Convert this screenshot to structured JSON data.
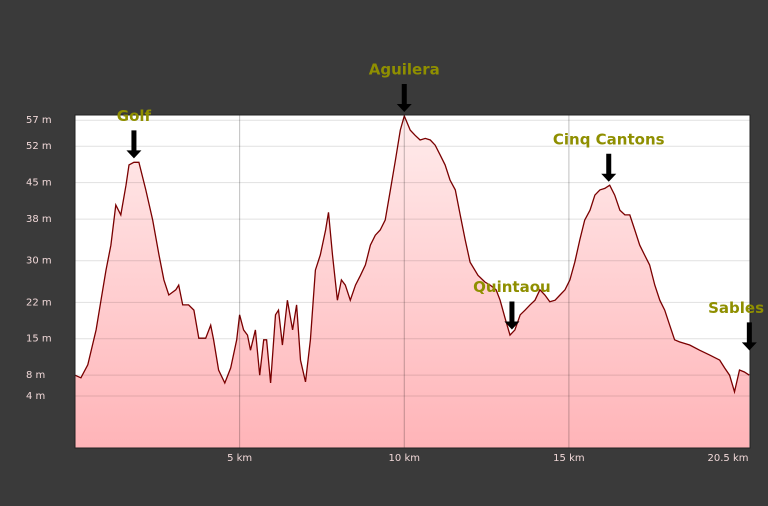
{
  "chart_data": {
    "type": "area",
    "color": "#7a0000",
    "fill_top": "#ffecec",
    "fill_bottom": "#ffb4b8",
    "grid": true,
    "x": [
      0,
      0.18,
      0.39,
      0.64,
      0.79,
      0.94,
      1.09,
      1.24,
      1.39,
      1.55,
      1.64,
      1.79,
      1.94,
      2.15,
      2.36,
      2.55,
      2.7,
      2.85,
      3.06,
      3.15,
      3.27,
      3.45,
      3.61,
      3.76,
      3.97,
      4.12,
      4.21,
      4.36,
      4.55,
      4.73,
      4.91,
      5.0,
      5.12,
      5.24,
      5.33,
      5.48,
      5.61,
      5.73,
      5.82,
      5.94,
      6.09,
      6.18,
      6.3,
      6.45,
      6.61,
      6.73,
      6.85,
      7.0,
      7.15,
      7.3,
      7.45,
      7.61,
      7.7,
      7.82,
      7.97,
      8.09,
      8.21,
      8.36,
      8.52,
      8.67,
      8.82,
      8.97,
      9.12,
      9.27,
      9.42,
      9.58,
      9.73,
      9.88,
      10.0,
      10.18,
      10.33,
      10.48,
      10.64,
      10.79,
      10.94,
      11.09,
      11.24,
      11.39,
      11.55,
      11.7,
      11.85,
      12.0,
      12.24,
      12.45,
      12.61,
      12.79,
      12.91,
      13.06,
      13.21,
      13.36,
      13.52,
      13.67,
      13.82,
      13.97,
      14.12,
      14.27,
      14.42,
      14.58,
      14.73,
      14.88,
      15.03,
      15.18,
      15.33,
      15.48,
      15.64,
      15.79,
      15.94,
      16.09,
      16.24,
      16.39,
      16.55,
      16.7,
      16.85,
      17.0,
      17.15,
      17.3,
      17.45,
      17.61,
      17.76,
      17.91,
      18.06,
      18.21,
      18.36,
      18.67,
      18.97,
      19.27,
      19.58,
      19.73,
      19.88,
      20.03,
      20.18,
      20.33,
      20.48
    ],
    "values": [
      8.0,
      7.5,
      10.0,
      16.7,
      22.4,
      28.2,
      33.0,
      40.7,
      38.8,
      44.5,
      48.4,
      48.9,
      48.9,
      43.6,
      37.8,
      31.1,
      26.3,
      23.4,
      24.4,
      25.3,
      21.5,
      21.5,
      20.5,
      15.1,
      15.1,
      17.6,
      14.8,
      9.0,
      6.5,
      9.4,
      14.8,
      19.6,
      16.7,
      15.7,
      12.8,
      16.7,
      8.0,
      14.8,
      14.8,
      6.5,
      19.6,
      20.5,
      13.8,
      22.4,
      16.7,
      21.5,
      10.9,
      6.7,
      14.8,
      28.2,
      31.1,
      35.9,
      39.3,
      31.1,
      22.4,
      26.3,
      25.3,
      22.4,
      25.3,
      27.2,
      29.2,
      33.0,
      34.9,
      35.9,
      37.8,
      43.6,
      49.3,
      55.1,
      57.8,
      55.1,
      54.1,
      53.2,
      53.5,
      53.2,
      52.2,
      50.3,
      48.4,
      45.5,
      43.6,
      38.8,
      34.0,
      29.7,
      27.2,
      25.9,
      25.3,
      24.4,
      22.4,
      19.0,
      15.7,
      16.7,
      19.6,
      20.5,
      21.5,
      22.4,
      24.4,
      23.4,
      22.1,
      22.4,
      23.4,
      24.4,
      26.3,
      29.7,
      34.0,
      37.8,
      39.7,
      42.6,
      43.6,
      43.9,
      44.5,
      42.6,
      39.7,
      38.8,
      38.8,
      35.9,
      33.0,
      31.1,
      29.2,
      25.3,
      22.4,
      20.5,
      17.6,
      14.8,
      14.4,
      13.8,
      12.8,
      11.9,
      10.9,
      9.4,
      8.0,
      4.8,
      9.0,
      8.6,
      8.0
    ],
    "xlim": [
      0,
      20.5
    ],
    "ylim": [
      -6,
      58
    ],
    "xticks": [
      {
        "value": 5,
        "label": "5 km"
      },
      {
        "value": 10,
        "label": "10 km"
      },
      {
        "value": 15,
        "label": "15 km"
      },
      {
        "value": 20.5,
        "label": "20.5 km"
      }
    ],
    "yticks": [
      {
        "value": 57,
        "label": "57 m"
      },
      {
        "value": 52,
        "label": "52 m"
      },
      {
        "value": 45,
        "label": "45 m"
      },
      {
        "value": 38,
        "label": "38 m"
      },
      {
        "value": 30,
        "label": "30 m"
      },
      {
        "value": 22,
        "label": "22 m"
      },
      {
        "value": 15,
        "label": "15 m"
      },
      {
        "value": 8,
        "label": "8 m"
      },
      {
        "value": 4,
        "label": "4 m"
      }
    ],
    "annotations": [
      {
        "text": "Golf",
        "x": 1.79,
        "y": 48.9
      },
      {
        "text": "Aguilera",
        "x": 10.0,
        "y": 57.8
      },
      {
        "text": "Quintaou",
        "x": 13.27,
        "y": 16.0
      },
      {
        "text": "Cinq Cantons",
        "x": 16.21,
        "y": 44.4
      },
      {
        "text": "Sables",
        "x": 20.48,
        "y": 12.0
      }
    ]
  }
}
